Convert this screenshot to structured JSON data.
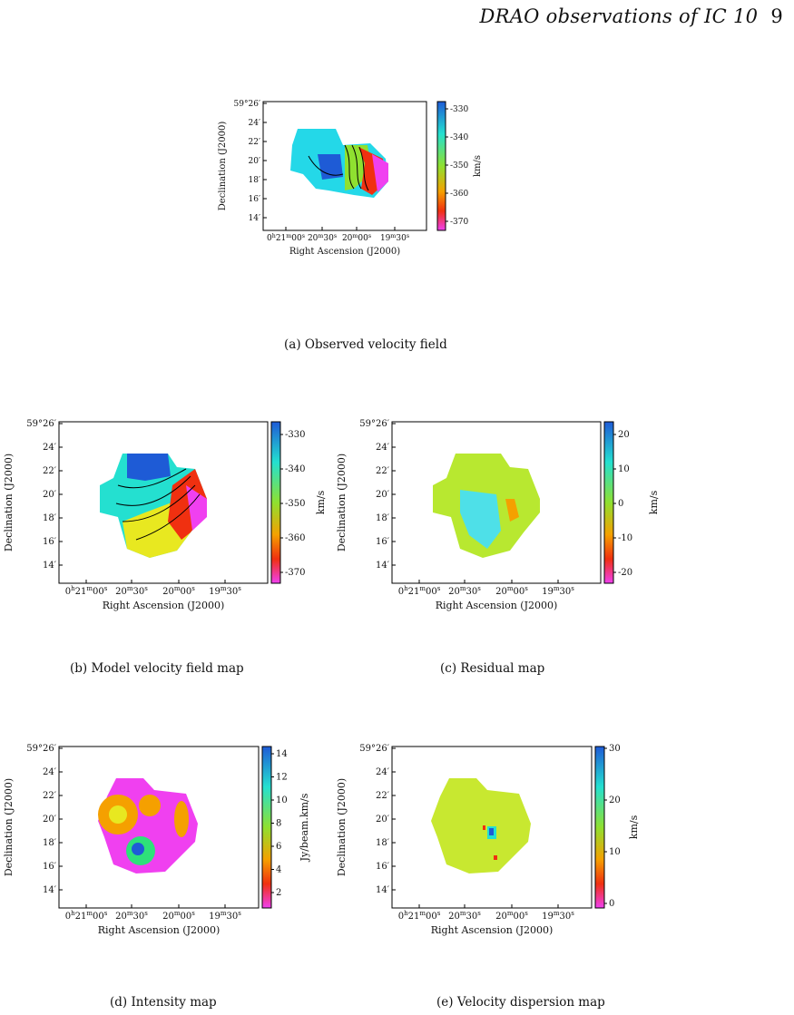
{
  "header": {
    "title": "DRAO observations of IC 10",
    "page_number": "9"
  },
  "axes": {
    "ylabel": "Declination (J2000)",
    "xlabel": "Right Ascension (J2000)",
    "y_ticks": [
      "59°26′",
      "24′",
      "22′",
      "20′",
      "18′",
      "16′",
      "14′"
    ],
    "x_ticks": [
      {
        "h": "0",
        "hu": "h",
        "m": "21",
        "mu": "m",
        "s": "00",
        "su": "s"
      },
      {
        "m": "20",
        "mu": "m",
        "s": "30",
        "su": "s"
      },
      {
        "m": "20",
        "mu": "m",
        "s": "00",
        "su": "s"
      },
      {
        "m": "19",
        "mu": "m",
        "s": "30",
        "su": "s"
      }
    ]
  },
  "panels": [
    {
      "id": "a",
      "caption": "(a) Observed velocity field",
      "colorbar_label": "km/s",
      "colorbar_ticks": [
        "-330",
        "-340",
        "-350",
        "-360",
        "-370"
      ],
      "colormap": [
        "#1e5bd6",
        "#1fa8e8",
        "#24e0d0",
        "#2ee07a",
        "#8fe030",
        "#e8e820",
        "#f5a000",
        "#f03010",
        "#f020a0",
        "#f040f0"
      ]
    },
    {
      "id": "b",
      "caption": "(b) Model velocity field map",
      "colorbar_label": "km/s",
      "colorbar_ticks": [
        "-330",
        "-340",
        "-350",
        "-360",
        "-370"
      ],
      "colormap": [
        "#1e5bd6",
        "#1fa8e8",
        "#24e0d0",
        "#2ee07a",
        "#8fe030",
        "#e8e820",
        "#f5a000",
        "#f03010",
        "#f020a0",
        "#f040f0"
      ]
    },
    {
      "id": "c",
      "caption": "(c) Residual map",
      "colorbar_label": "km/s",
      "colorbar_ticks": [
        "20",
        "10",
        "0",
        "-10",
        "-20"
      ],
      "colormap": [
        "#1e5bd6",
        "#1fa8e8",
        "#24e0d0",
        "#2ee07a",
        "#8fe030",
        "#e8e820",
        "#f5a000",
        "#f03010",
        "#f020a0",
        "#f040f0"
      ]
    },
    {
      "id": "d",
      "caption": "(d) Intensity map",
      "colorbar_label": "Jy/beam.km/s",
      "colorbar_ticks": [
        "14",
        "12",
        "10",
        "8",
        "6",
        "4",
        "2"
      ],
      "colormap": [
        "#1e5bd6",
        "#1fa8e8",
        "#24e0d0",
        "#2ee07a",
        "#8fe030",
        "#e8e820",
        "#f5a000",
        "#f03010",
        "#f020a0",
        "#f040f0"
      ]
    },
    {
      "id": "e",
      "caption": "(e) Velocity dispersion map",
      "colorbar_label": "km/s",
      "colorbar_ticks": [
        "30",
        "20",
        "10",
        "0"
      ],
      "colormap": [
        "#1e5bd6",
        "#1fa8e8",
        "#24e0d0",
        "#2ee07a",
        "#8fe030",
        "#e8e820",
        "#f5a000",
        "#f03010",
        "#f020a0",
        "#f040f0"
      ]
    }
  ]
}
